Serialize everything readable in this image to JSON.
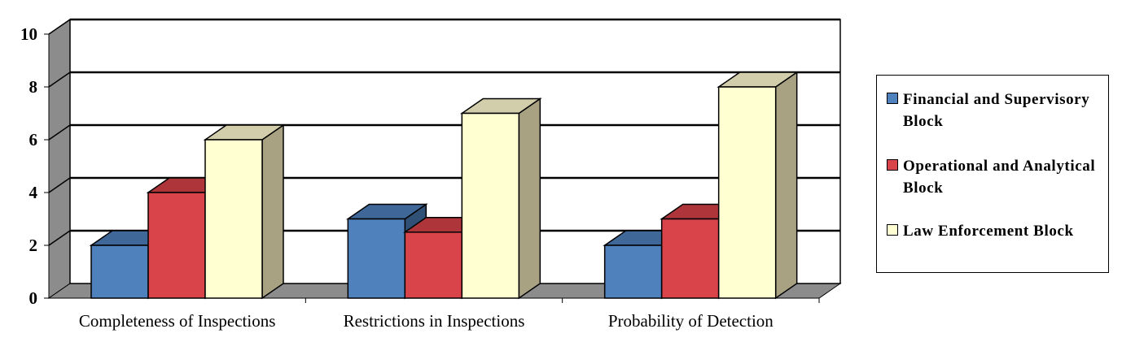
{
  "chart_data": {
    "type": "bar",
    "title": "",
    "xlabel": "",
    "ylabel": "",
    "ylim": [
      0,
      10
    ],
    "yticks": [
      "0",
      "2",
      "4",
      "6",
      "8",
      "10"
    ],
    "categories": [
      "Completeness of Inspections",
      "Restrictions in Inspections",
      "Probability of Detection"
    ],
    "series": [
      {
        "name": "Financial and Supervisory Block",
        "values": [
          2,
          3,
          2
        ],
        "color": "#4f81bd"
      },
      {
        "name": "Operational and Analytical Block",
        "values": [
          4,
          2.5,
          3
        ],
        "color": "#d9434a"
      },
      {
        "name": "Law Enforcement Block",
        "values": [
          6,
          7,
          8
        ],
        "color": "#ffffd2"
      }
    ],
    "legend_position": "right",
    "grid": true,
    "style": "3d-column"
  }
}
